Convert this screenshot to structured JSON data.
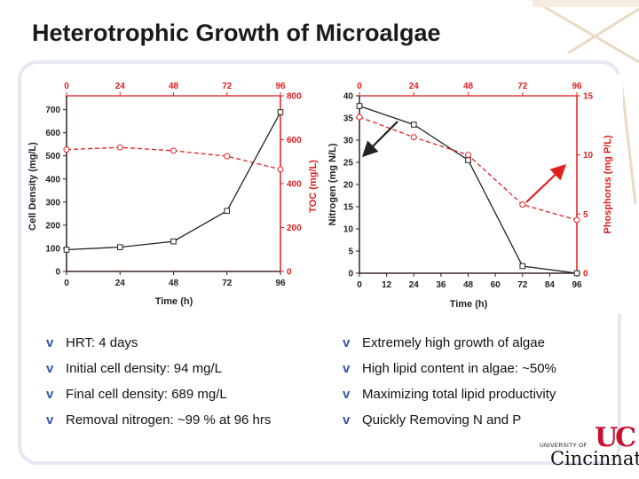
{
  "slide": {
    "title": "Heterotrophic Growth of Microalgae",
    "accent_color": "#e02020",
    "bullets_left": [
      "HRT: 4 days",
      "Initial cell density: 94 mg/L",
      "Final cell density: 689 mg/L",
      "Removal nitrogen: ~99 % at 96 hrs"
    ],
    "bullets_right": [
      "Extremely high growth of algae",
      "High lipid content in algae: ~50%",
      "Maximizing total lipid productivity",
      "Quickly Removing N and P"
    ],
    "bullet_glyph": "v",
    "logo": {
      "line1": "UNIVERSITY OF",
      "line2": "Cincinnati",
      "mark": "UC"
    }
  },
  "chart_data": [
    {
      "type": "line",
      "x": [
        0,
        24,
        48,
        72,
        96
      ],
      "xlabel": "Time (h)",
      "xticks": [
        0,
        24,
        48,
        72,
        96
      ],
      "xlim": [
        0,
        96
      ],
      "ylabel": "Cell Density (mg/L)",
      "ylim": [
        0,
        760
      ],
      "yticks": [
        0,
        100,
        200,
        300,
        400,
        500,
        600,
        700
      ],
      "y2label": "TOC (mg/L)",
      "y2lim": [
        0,
        800
      ],
      "y2ticks": [
        0,
        200,
        400,
        600,
        800
      ],
      "grid": false,
      "series": [
        {
          "values": [
            94,
            105,
            130,
            262,
            689
          ],
          "axis": "left",
          "color": "#222222",
          "marker": "square",
          "style": "solid"
        },
        {
          "values": [
            555,
            565,
            550,
            525,
            465
          ],
          "axis": "right",
          "color": "#e02020",
          "marker": "circle",
          "style": "dashed"
        }
      ]
    },
    {
      "type": "line",
      "x": [
        0,
        24,
        48,
        72,
        96
      ],
      "xlabel": "Time (h)",
      "xticks": [
        0,
        12,
        24,
        36,
        48,
        60,
        72,
        84,
        96
      ],
      "xlim": [
        0,
        96
      ],
      "ylabel": "Nitrogen (mg N/L)",
      "ylim": [
        0,
        40
      ],
      "yticks": [
        0,
        5,
        10,
        15,
        20,
        25,
        30,
        35,
        40
      ],
      "y2label": "Phosphorus (mg P/L)",
      "y2lim": [
        0,
        15
      ],
      "y2ticks": [
        0,
        5,
        10,
        15
      ],
      "grid": false,
      "series": [
        {
          "values": [
            37.7,
            33.5,
            25.5,
            1.6,
            0
          ],
          "axis": "left",
          "color": "#222222",
          "marker": "square",
          "style": "solid"
        },
        {
          "values": [
            13.2,
            11.5,
            10,
            5.8,
            4.5
          ],
          "axis": "right",
          "color": "#e02020",
          "marker": "circle",
          "style": "dashed"
        }
      ]
    }
  ]
}
